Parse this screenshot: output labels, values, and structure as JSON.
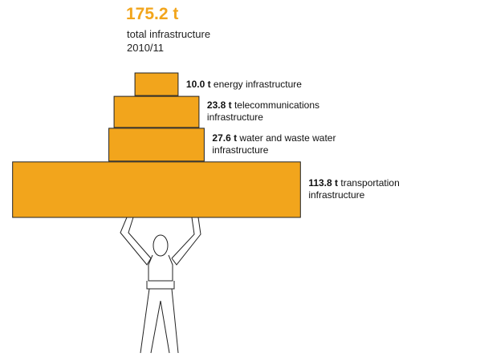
{
  "chart_data": {
    "type": "stacked-blocks",
    "total": {
      "value": 175.2,
      "value_label": "175.2 t",
      "caption": "total infrastructure",
      "period": "2010/11"
    },
    "categories": [
      "energy infrastructure",
      "telecommunications infrastructure",
      "water and waste water infrastructure",
      "transportation infrastructure"
    ],
    "values": [
      10.0,
      23.8,
      27.6,
      113.8
    ],
    "value_labels": [
      "10.0 t",
      "23.8 t",
      "27.6 t",
      "113.8 t"
    ],
    "color": "#f2a51c"
  }
}
